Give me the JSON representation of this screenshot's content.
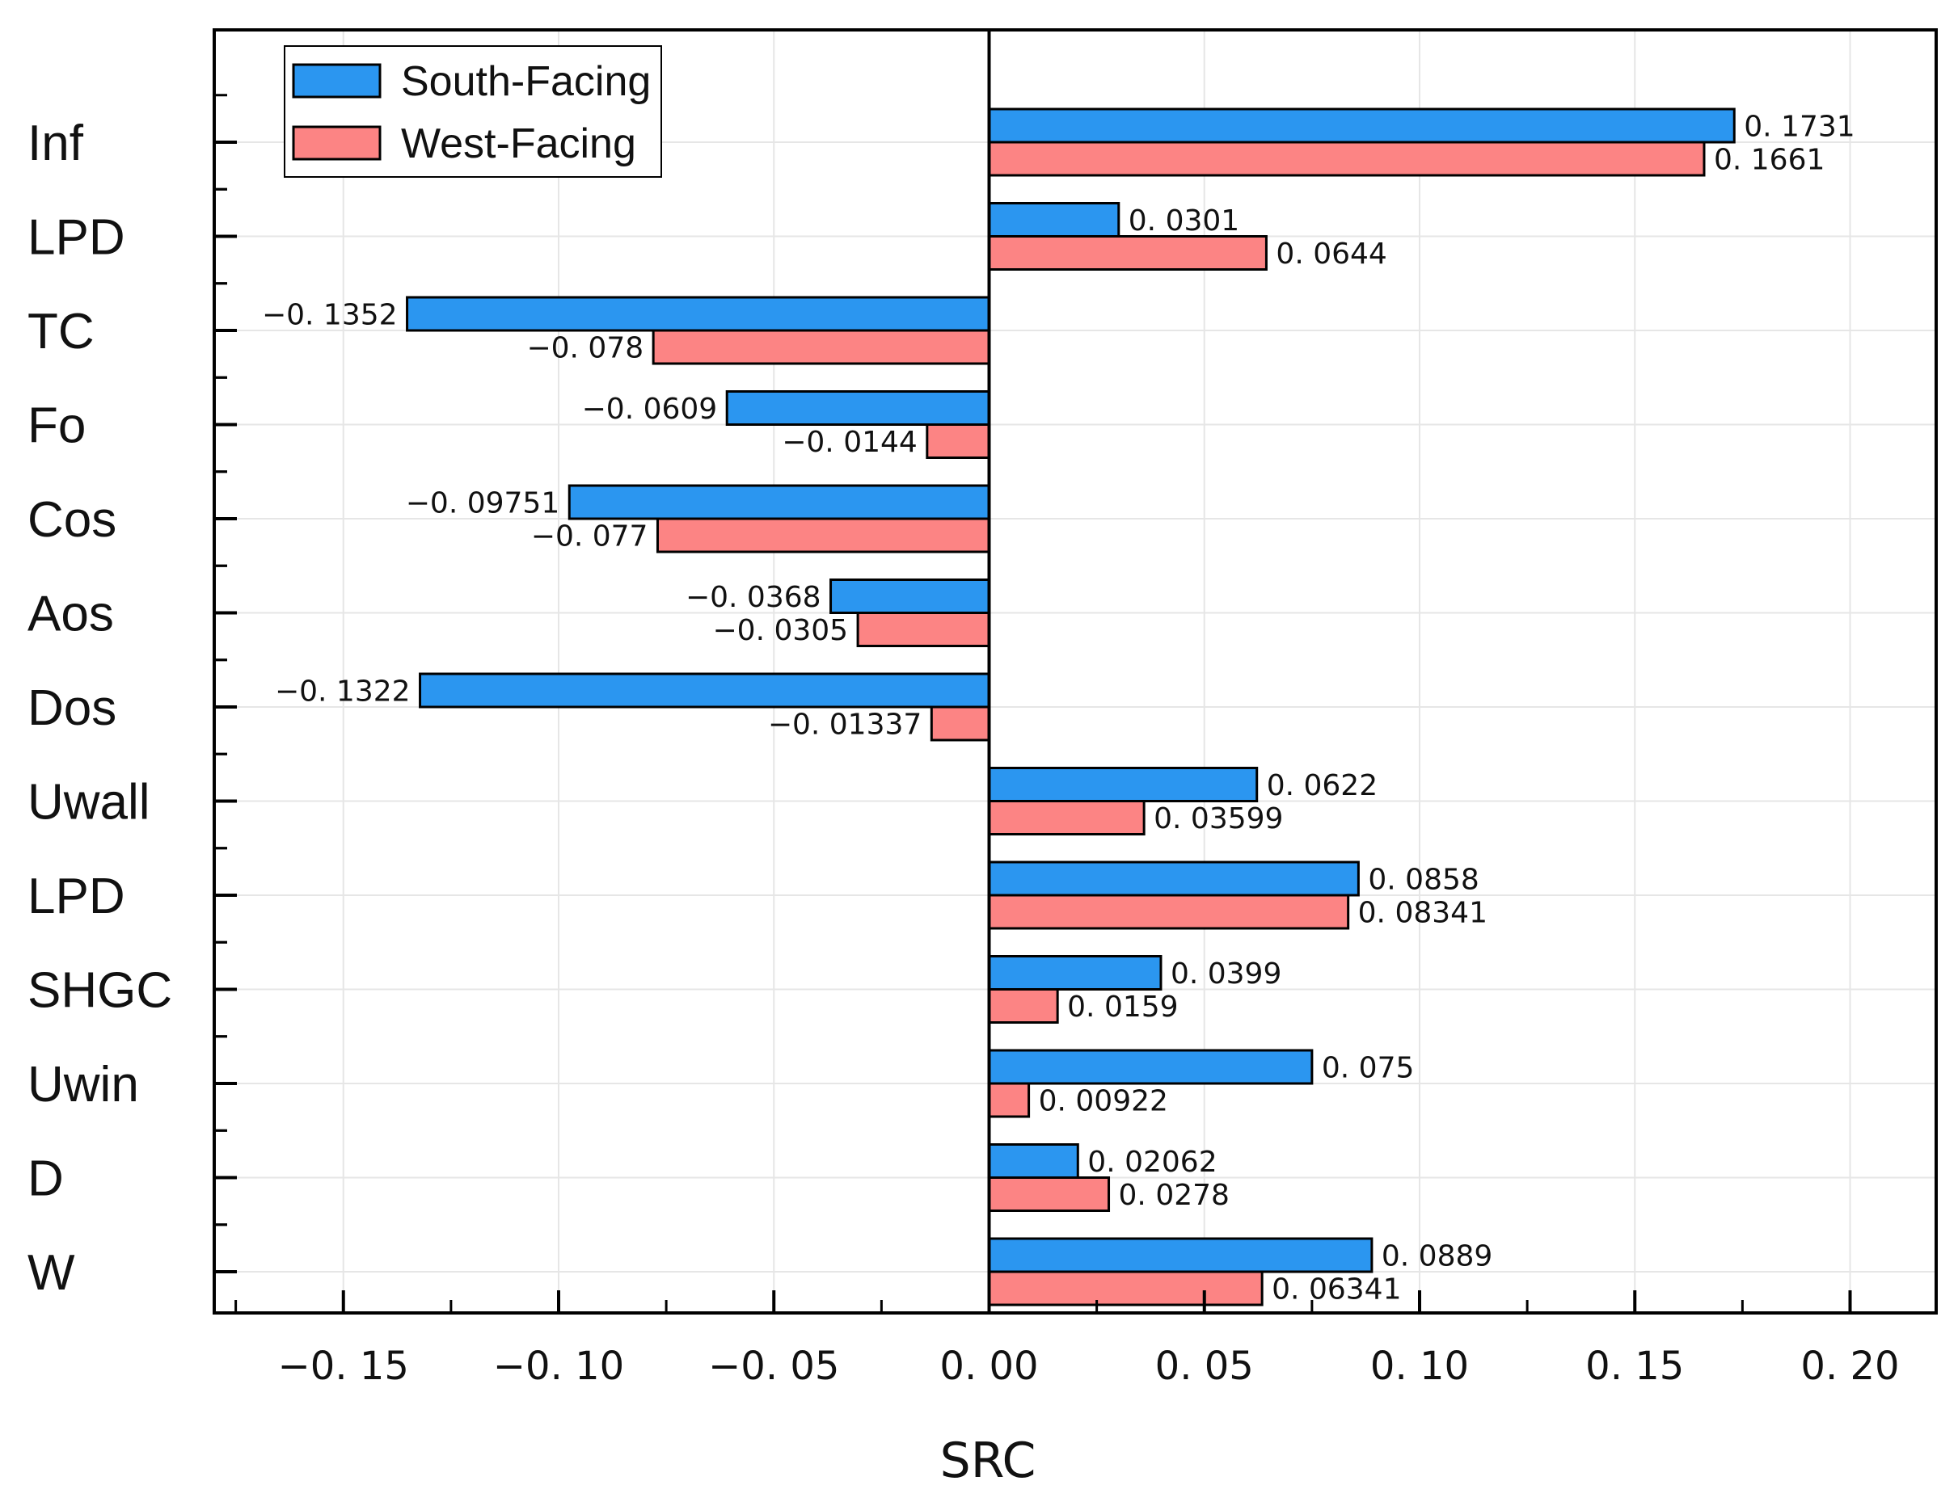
{
  "chart_data": {
    "type": "bar",
    "orientation": "horizontal",
    "title": "",
    "xlabel": "SRC",
    "ylabel": "",
    "xlim": [
      -0.18,
      0.22
    ],
    "xticks": [
      -0.15,
      -0.1,
      -0.05,
      0.0,
      0.05,
      0.1,
      0.15,
      0.2
    ],
    "xtick_labels": [
      "−0. 15",
      "−0. 10",
      "−0. 05",
      "0. 00",
      "0. 05",
      "0. 10",
      "0. 15",
      "0. 20"
    ],
    "grid": true,
    "legend_position": "top-left",
    "categories": [
      "Inf",
      "LPD",
      "TC",
      "Fo",
      "Cos",
      "Aos",
      "Dos",
      "Uwall",
      "LPD",
      "SHGC",
      "Uwin",
      "D",
      "W"
    ],
    "series": [
      {
        "name": "South-Facing",
        "color": "#2b96f0",
        "values": [
          0.1731,
          0.0301,
          -0.1352,
          -0.0609,
          -0.09751,
          -0.0368,
          -0.1322,
          0.0622,
          0.0858,
          0.0399,
          0.075,
          0.02062,
          0.0889
        ],
        "labels": [
          "0. 1731",
          "0. 0301",
          "−0. 1352",
          "−0. 0609",
          "−0. 09751",
          "−0. 0368",
          "−0. 1322",
          "0. 0622",
          "0. 0858",
          "0. 0399",
          "0. 075",
          "0. 02062",
          "0. 0889"
        ]
      },
      {
        "name": "West-Facing",
        "color": "#fc8484",
        "values": [
          0.1661,
          0.0644,
          -0.078,
          -0.0144,
          -0.077,
          -0.0305,
          -0.01337,
          0.03599,
          0.08341,
          0.0159,
          0.00922,
          0.0278,
          0.06341
        ],
        "labels": [
          "0. 1661",
          "0. 0644",
          "−0. 078",
          "−0. 0144",
          "−0. 077",
          "−0. 0305",
          "−0. 01337",
          "0. 03599",
          "0. 08341",
          "0. 0159",
          "0. 00922",
          "0. 0278",
          "0. 06341"
        ]
      }
    ]
  }
}
